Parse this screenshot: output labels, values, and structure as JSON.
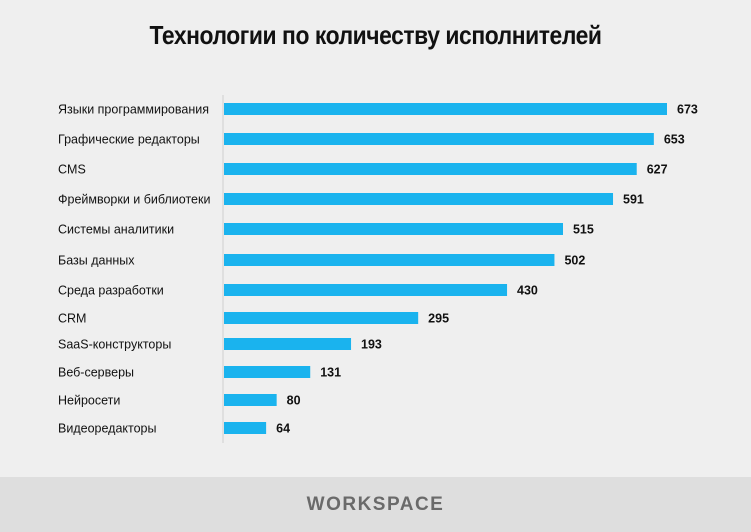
{
  "chart_data": {
    "type": "bar",
    "orientation": "horizontal",
    "title": "Технологии по количеству исполнителей",
    "categories": [
      "Языки программирования",
      "Графические редакторы",
      "CMS",
      "Фреймворки и библиотеки",
      "Системы аналитики",
      "Базы данных",
      "Среда разработки",
      "CRM",
      "SaaS-конструкторы",
      "Веб-серверы",
      "Нейросети",
      "Видеоредакторы"
    ],
    "values": [
      673,
      653,
      627,
      591,
      515,
      502,
      430,
      295,
      193,
      131,
      80,
      64
    ],
    "bar_color": "#1ab3ee",
    "grid": false,
    "xlim": [
      0,
      673
    ]
  },
  "footer": {
    "brand": "WORKSPACE"
  }
}
